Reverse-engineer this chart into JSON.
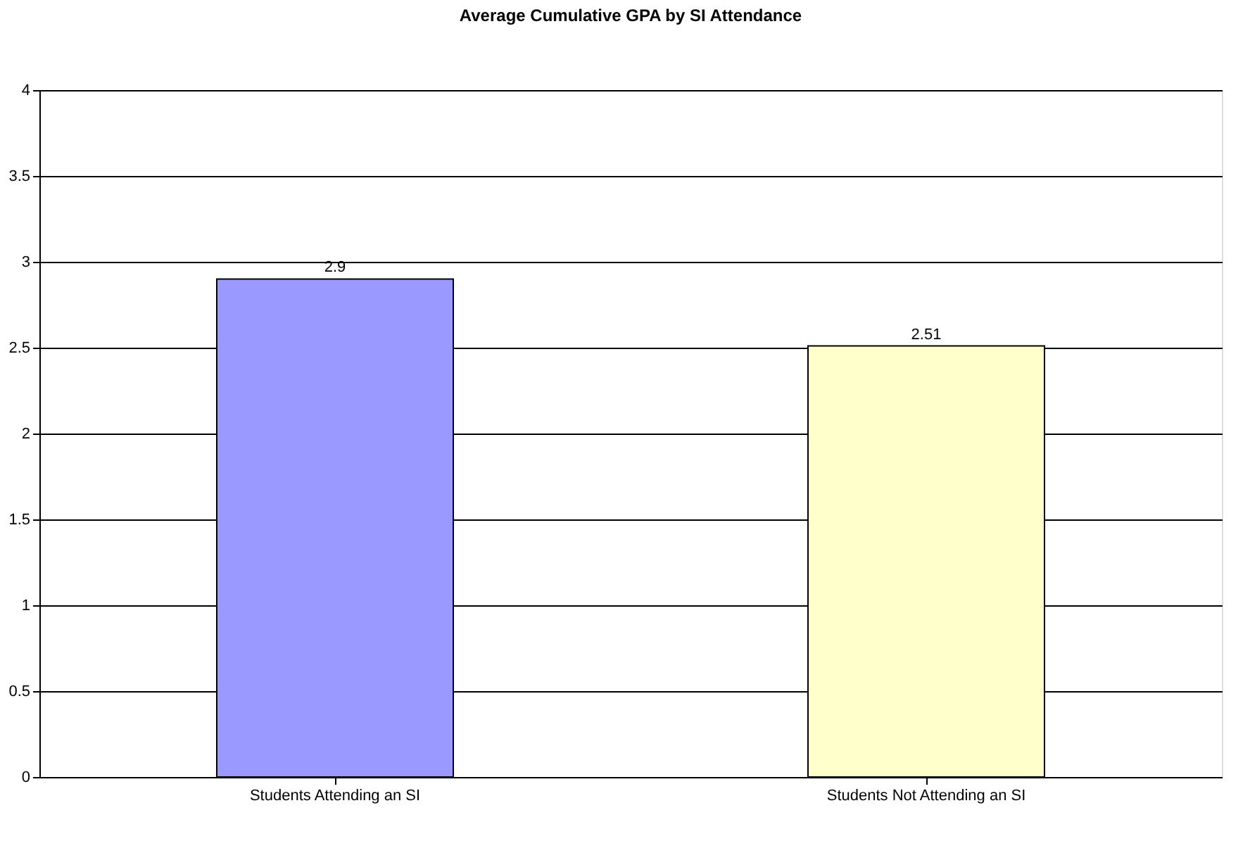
{
  "chart_data": {
    "type": "bar",
    "title": "Average Cumulative GPA by SI Attendance",
    "categories": [
      "Students Attending an SI",
      "Students Not Attending an SI"
    ],
    "values": [
      2.9,
      2.51
    ],
    "colors": [
      "#9999ff",
      "#ffffcc"
    ],
    "ylim": [
      0,
      4
    ],
    "yticks": [
      0,
      0.5,
      1,
      1.5,
      2,
      2.5,
      3,
      3.5,
      4
    ],
    "grid": "y",
    "data_labels": true
  }
}
